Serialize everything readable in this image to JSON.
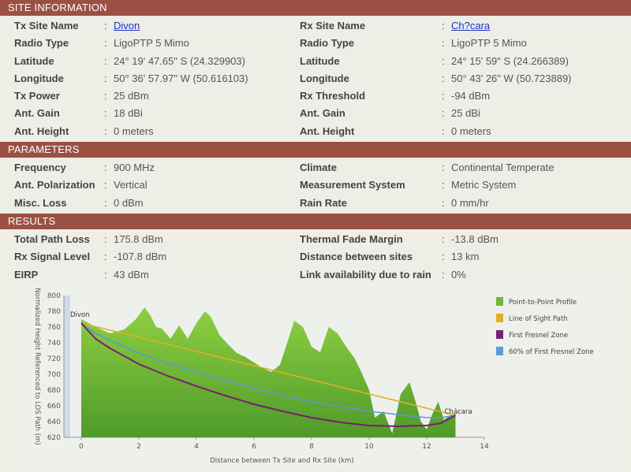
{
  "site_information": {
    "header": "SITE INFORMATION",
    "rows": [
      {
        "l_label": "Tx Site Name",
        "l_value": "Divon",
        "r_label": "Rx Site Name",
        "r_value": "Ch?cara"
      },
      {
        "l_label": "Radio Type",
        "l_value": "LigoPTP 5 Mimo",
        "r_label": "Radio Type",
        "r_value": "LigoPTP 5 Mimo"
      },
      {
        "l_label": "Latitude",
        "l_value": "24° 19' 47.65\" S (24.329903)",
        "r_label": "Latitude",
        "r_value": "24° 15' 59\" S (24.266389)"
      },
      {
        "l_label": "Longitude",
        "l_value": "50° 36' 57.97\" W (50.616103)",
        "r_label": "Longitude",
        "r_value": "50° 43' 26\" W (50.723889)"
      },
      {
        "l_label": "Tx Power",
        "l_value": "25 dBm",
        "r_label": "Rx Threshold",
        "r_value": "-94 dBm"
      },
      {
        "l_label": "Ant. Gain",
        "l_value": "18 dBi",
        "r_label": "Ant. Gain",
        "r_value": "25 dBi"
      },
      {
        "l_label": "Ant. Height",
        "l_value": "0 meters",
        "r_label": "Ant. Height",
        "r_value": "0 meters"
      }
    ]
  },
  "parameters": {
    "header": "PARAMETERS",
    "rows": [
      {
        "l_label": "Frequency",
        "l_value": "900 MHz",
        "r_label": "Climate",
        "r_value": "Continental Temperate"
      },
      {
        "l_label": "Ant. Polarization",
        "l_value": "Vertical",
        "r_label": "Measurement System",
        "r_value": "Metric System"
      },
      {
        "l_label": "Misc. Loss",
        "l_value": "0 dBm",
        "r_label": "Rain Rate",
        "r_value": "0 mm/hr"
      }
    ]
  },
  "results": {
    "header": "RESULTS",
    "rows": [
      {
        "l_label": "Total Path Loss",
        "l_value": "175.8 dBm",
        "r_label": "Thermal Fade Margin",
        "r_value": "-13.8 dBm"
      },
      {
        "l_label": "Rx Signal Level",
        "l_value": "-107.8 dBm",
        "r_label": "Distance between sites",
        "r_value": "13 km"
      },
      {
        "l_label": "EIRP",
        "l_value": "43 dBm",
        "r_label": "Link availability due to rain",
        "r_value": "0%"
      }
    ]
  },
  "colon": ":",
  "chart_data": {
    "type": "area",
    "xlabel": "Distance between Tx Site and Rx Site (km)",
    "ylabel": "Normalized Height Referenced to LOS Path (m)",
    "xlim": [
      0,
      14
    ],
    "ylim": [
      620,
      800
    ],
    "xticks": [
      0,
      2,
      4,
      6,
      8,
      10,
      12,
      14
    ],
    "yticks": [
      620,
      640,
      660,
      680,
      700,
      720,
      740,
      760,
      780,
      800
    ],
    "tx_site_label": "Divon",
    "rx_site_label": "Chácara",
    "legend": [
      {
        "name": "Point-to-Point Profile",
        "color": "#6fb83a"
      },
      {
        "name": "Line of Sight Path",
        "color": "#e0b020"
      },
      {
        "name": "First Fresnel Zone",
        "color": "#7a1f6e"
      },
      {
        "name": "60% of First Fresnel Zone",
        "color": "#5a9ad6"
      }
    ],
    "series": [
      {
        "name": "Point-to-Point Profile",
        "x": [
          0,
          0.5,
          1,
          1.5,
          1.9,
          2.2,
          2.4,
          2.6,
          2.8,
          3.1,
          3.4,
          3.7,
          4.0,
          4.3,
          4.5,
          4.8,
          5.1,
          5.4,
          5.7,
          6.0,
          6.3,
          6.6,
          6.9,
          7.2,
          7.4,
          7.7,
          8.0,
          8.3,
          8.6,
          8.9,
          9.2,
          9.5,
          9.7,
          10.0,
          10.2,
          10.5,
          10.8,
          11.1,
          11.4,
          11.6,
          11.8,
          12.0,
          12.2,
          12.4,
          12.6,
          12.8,
          13.0
        ],
        "y": [
          770,
          760,
          752,
          757,
          770,
          785,
          775,
          760,
          758,
          745,
          762,
          745,
          765,
          780,
          773,
          750,
          738,
          727,
          722,
          715,
          708,
          703,
          712,
          745,
          768,
          760,
          735,
          728,
          760,
          752,
          735,
          720,
          705,
          680,
          645,
          653,
          625,
          675,
          690,
          667,
          640,
          630,
          650,
          665,
          642,
          648,
          650
        ]
      },
      {
        "name": "Line of Sight Path",
        "x": [
          0,
          13
        ],
        "y": [
          765,
          648
        ]
      },
      {
        "name": "First Fresnel Zone",
        "x": [
          0,
          0.5,
          1,
          2,
          3,
          4,
          5,
          6,
          7,
          8,
          9,
          10,
          11,
          12,
          12.5,
          13
        ],
        "y": [
          765,
          745,
          733,
          713,
          698,
          685,
          673,
          662,
          653,
          645,
          639,
          635,
          634,
          635,
          638,
          648
        ]
      },
      {
        "name": "60% of First Fresnel Zone",
        "x": [
          0,
          0.5,
          1,
          2,
          3,
          4,
          5,
          6,
          7,
          8,
          9,
          10,
          11,
          12,
          12.5,
          13
        ],
        "y": [
          765,
          752,
          743,
          727,
          714,
          703,
          692,
          682,
          673,
          665,
          659,
          653,
          649,
          645,
          645,
          648
        ]
      }
    ]
  }
}
